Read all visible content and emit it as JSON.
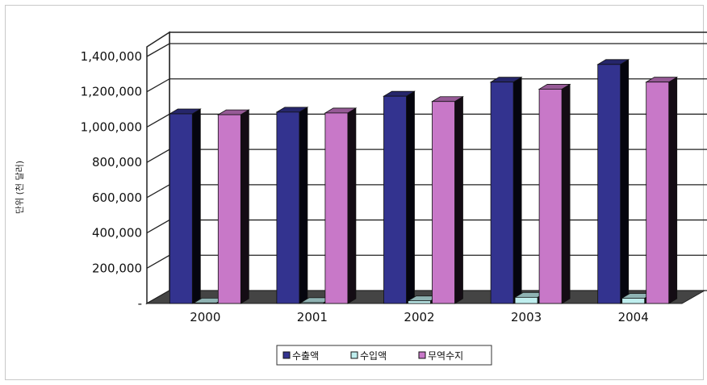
{
  "chart_data": {
    "type": "bar",
    "title": "",
    "xlabel": "",
    "ylabel": "단위 (천 달러)",
    "categories": [
      "2000",
      "2001",
      "2002",
      "2003",
      "2004"
    ],
    "series": [
      {
        "name": "수출액",
        "color": "#33338f",
        "values": [
          1075000,
          1085000,
          1175000,
          1255000,
          1355000
        ]
      },
      {
        "name": "수입액",
        "color": "#bfeeee",
        "values": [
          3000,
          5000,
          15000,
          35000,
          30000
        ]
      },
      {
        "name": "무역수지",
        "color": "#c878c8",
        "values": [
          1070000,
          1080000,
          1145000,
          1215000,
          1255000
        ]
      }
    ],
    "yticks": [
      "-",
      "200,000",
      "400,000",
      "600,000",
      "800,000",
      "1,000,000",
      "1,200,000",
      "1,400,000"
    ],
    "ylim": [
      0,
      1400000
    ],
    "grid": true,
    "legend_position": "bottom",
    "three_d": true
  }
}
